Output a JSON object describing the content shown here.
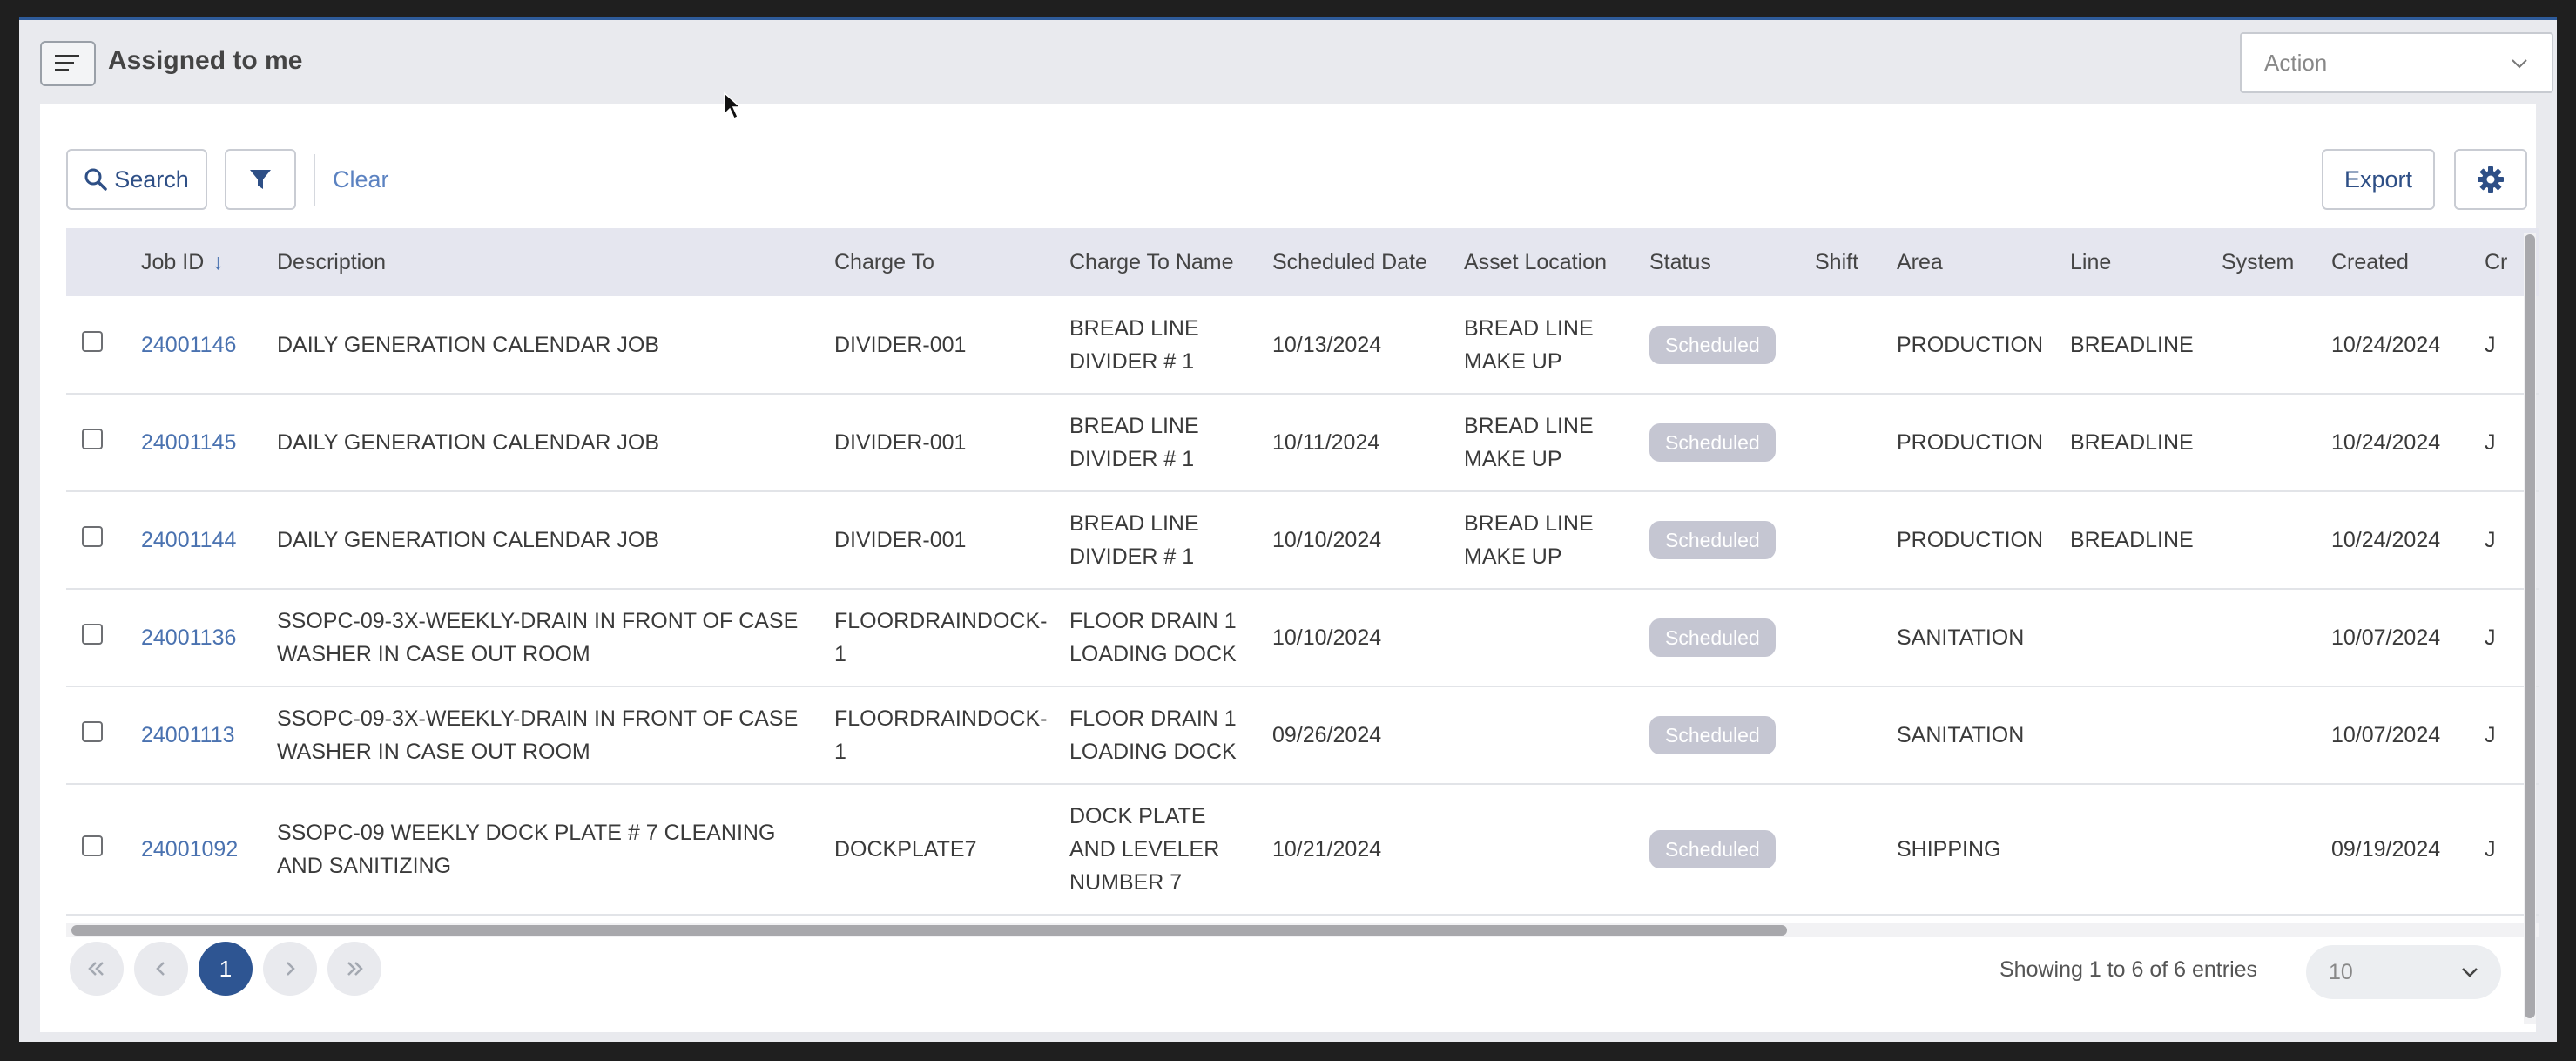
{
  "header": {
    "title": "Assigned to me",
    "action_placeholder": "Action"
  },
  "toolbar": {
    "search_label": "Search",
    "clear_label": "Clear",
    "export_label": "Export"
  },
  "table": {
    "columns": [
      "Job ID",
      "Description",
      "Charge To",
      "Charge To Name",
      "Scheduled Date",
      "Asset Location",
      "Status",
      "Shift",
      "Area",
      "Line",
      "System",
      "Created",
      "Cr"
    ],
    "rows": [
      {
        "job_id": "24001146",
        "description": "DAILY GENERATION CALENDAR JOB",
        "charge_to": "DIVIDER-001",
        "charge_to_name": "BREAD LINE DIVIDER # 1",
        "scheduled_date": "10/13/2024",
        "asset_location": "BREAD LINE MAKE UP",
        "status": "Scheduled",
        "shift": "",
        "area": "PRODUCTION",
        "line": "BREADLINE",
        "system": "",
        "created": "10/24/2024",
        "created_by": "J"
      },
      {
        "job_id": "24001145",
        "description": "DAILY GENERATION CALENDAR JOB",
        "charge_to": "DIVIDER-001",
        "charge_to_name": "BREAD LINE DIVIDER # 1",
        "scheduled_date": "10/11/2024",
        "asset_location": "BREAD LINE MAKE UP",
        "status": "Scheduled",
        "shift": "",
        "area": "PRODUCTION",
        "line": "BREADLINE",
        "system": "",
        "created": "10/24/2024",
        "created_by": "J"
      },
      {
        "job_id": "24001144",
        "description": "DAILY GENERATION CALENDAR JOB",
        "charge_to": "DIVIDER-001",
        "charge_to_name": "BREAD LINE DIVIDER # 1",
        "scheduled_date": "10/10/2024",
        "asset_location": "BREAD LINE MAKE UP",
        "status": "Scheduled",
        "shift": "",
        "area": "PRODUCTION",
        "line": "BREADLINE",
        "system": "",
        "created": "10/24/2024",
        "created_by": "J"
      },
      {
        "job_id": "24001136",
        "description": "SSOPC-09-3X-WEEKLY-DRAIN IN FRONT OF CASE WASHER IN CASE OUT ROOM",
        "charge_to": "FLOORDRAINDOCK-1",
        "charge_to_name": "FLOOR DRAIN 1 LOADING DOCK",
        "scheduled_date": "10/10/2024",
        "asset_location": "",
        "status": "Scheduled",
        "shift": "",
        "area": "SANITATION",
        "line": "",
        "system": "",
        "created": "10/07/2024",
        "created_by": "J"
      },
      {
        "job_id": "24001113",
        "description": "SSOPC-09-3X-WEEKLY-DRAIN IN FRONT OF CASE WASHER IN CASE OUT ROOM",
        "charge_to": "FLOORDRAINDOCK-1",
        "charge_to_name": "FLOOR DRAIN 1 LOADING DOCK",
        "scheduled_date": "09/26/2024",
        "asset_location": "",
        "status": "Scheduled",
        "shift": "",
        "area": "SANITATION",
        "line": "",
        "system": "",
        "created": "10/07/2024",
        "created_by": "J"
      },
      {
        "job_id": "24001092",
        "description": "SSOPC-09 WEEKLY DOCK PLATE # 7 CLEANING AND SANITIZING",
        "charge_to": "DOCKPLATE7",
        "charge_to_name": "DOCK PLATE AND LEVELER NUMBER 7",
        "scheduled_date": "10/21/2024",
        "asset_location": "",
        "status": "Scheduled",
        "shift": "",
        "area": "SHIPPING",
        "line": "",
        "system": "",
        "created": "09/19/2024",
        "created_by": "J"
      }
    ]
  },
  "pagination": {
    "current_page": "1",
    "entries_text": "Showing 1 to 6 of 6 entries",
    "page_size": "10"
  },
  "colors": {
    "accent": "#2e5592",
    "link": "#4a72b0",
    "badge": "#c5c6d2",
    "header_bg": "#e5e6ef"
  }
}
